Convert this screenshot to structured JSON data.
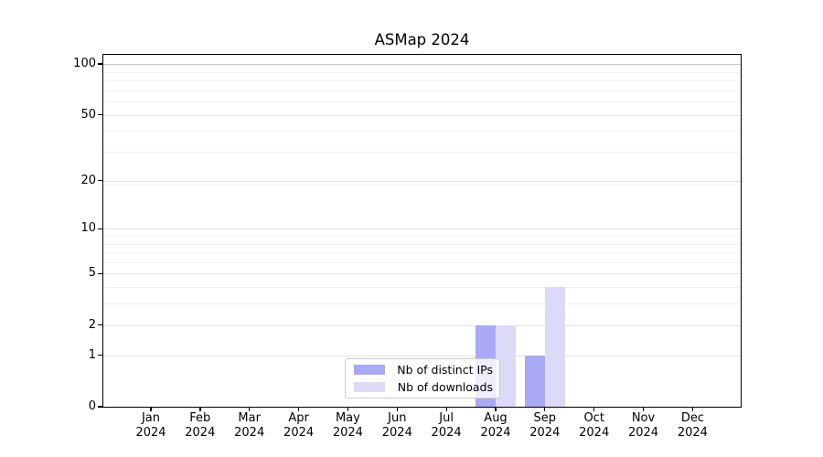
{
  "figure": {
    "background": "#ffffff"
  },
  "chart_data": {
    "type": "bar",
    "title": "ASMap 2024",
    "xlabel": "",
    "ylabel": "",
    "categories": [
      "Jan",
      "Feb",
      "Mar",
      "Apr",
      "May",
      "Jun",
      "Jul",
      "Aug",
      "Sep",
      "Oct",
      "Nov",
      "Dec"
    ],
    "category_year": "2024",
    "series": [
      {
        "name": "Nb of distinct IPs",
        "color": "#a9a9f4",
        "values": [
          0,
          0,
          0,
          0,
          0,
          0,
          0,
          2,
          1,
          0,
          0,
          0
        ]
      },
      {
        "name": "Nb of downloads",
        "color": "#dbdbf8",
        "values": [
          0,
          0,
          0,
          0,
          0,
          0,
          0,
          2,
          4,
          0,
          0,
          0
        ]
      }
    ],
    "y_scale": "log10(1+value)",
    "ylim": [
      0,
      100
    ],
    "y_major_ticks": [
      0,
      1,
      2,
      5,
      10,
      20,
      50,
      100
    ],
    "y_minor_gridlines": [
      3,
      4,
      6,
      7,
      8,
      9,
      19,
      30,
      40,
      60,
      70,
      80,
      90
    ],
    "grid": "both",
    "legend_position": "lower center",
    "colors": {
      "spine": "#000000",
      "grid_major": "#e2e2e2",
      "grid_minor": "#f2f2f2",
      "grid_top_line": "#c4c4c4",
      "legend_border": "#cccccc",
      "tick_label": "#000000",
      "plot_background": "#ffffff"
    }
  }
}
